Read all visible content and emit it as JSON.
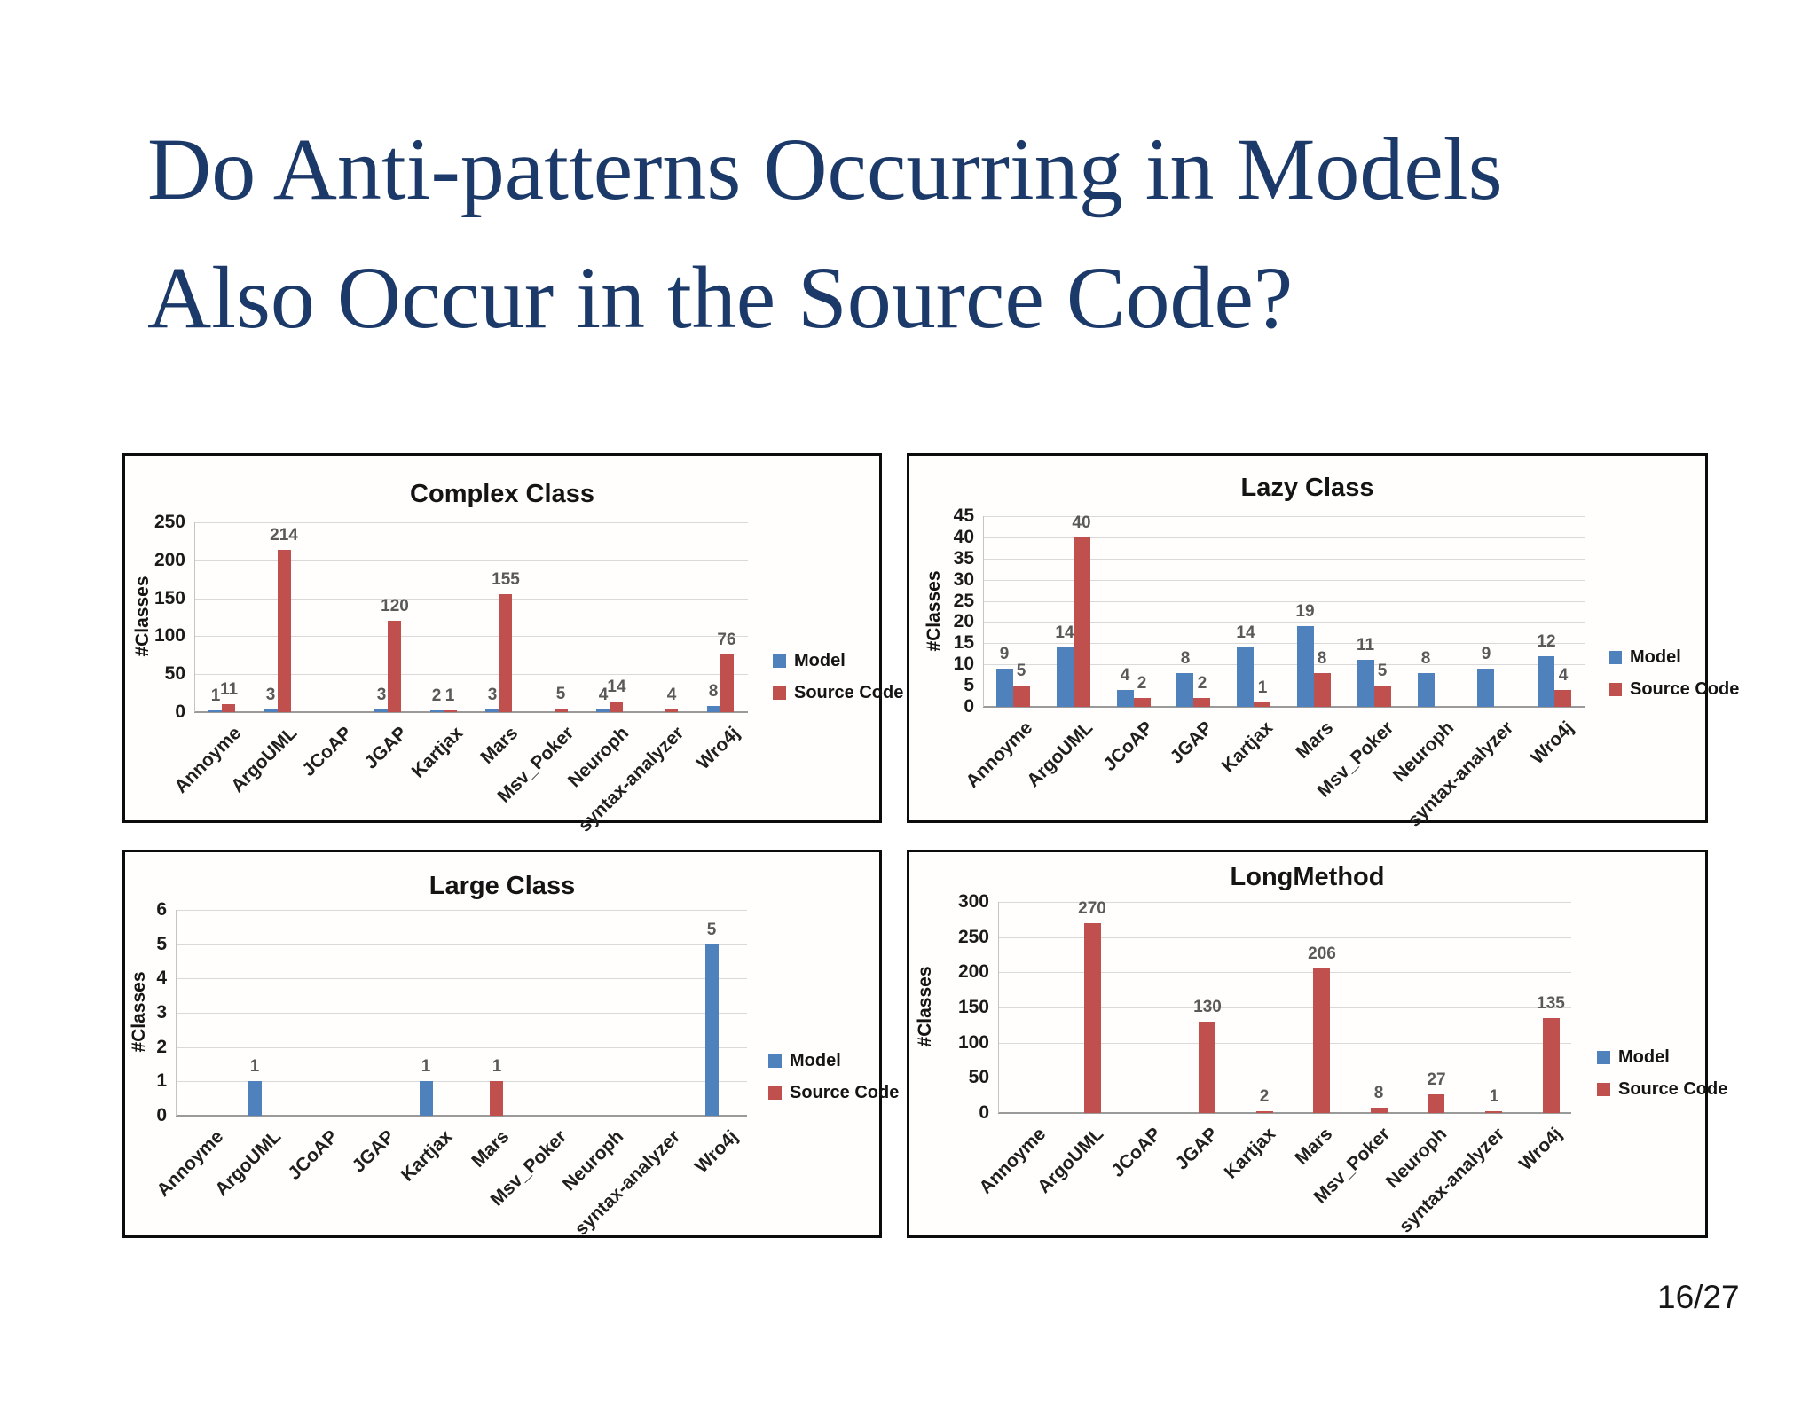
{
  "slide": {
    "title_line1": "Do Anti-patterns Occurring in Models",
    "title_line2": "Also Occur in the Source Code?",
    "page_number": "16/27"
  },
  "colors": {
    "slide_title": "#1c3a69",
    "model": "#4f81bd",
    "source_code": "#c0504d",
    "value_label": "#595959",
    "gridline": "#d9d9d9",
    "axis_line": "#9a9a9a",
    "axis_side": "#c4c4c4",
    "chart_text": "#1a1a1a"
  },
  "categories": [
    "Annoyme",
    "ArgoUML",
    "JCoAP",
    "JGAP",
    "Kartjax",
    "Mars",
    "Msv_Poker",
    "Neuroph",
    "syntax-analyzer",
    "Wro4j"
  ],
  "chart_data": [
    {
      "type": "bar",
      "title": "Complex Class",
      "position": "top-left",
      "xlabel": "",
      "ylabel": "#Classes",
      "ylim": [
        0,
        250
      ],
      "ytick_step": 50,
      "grid": true,
      "legend_position": "right",
      "categories": [
        "Annoyme",
        "ArgoUML",
        "JCoAP",
        "JGAP",
        "Kartjax",
        "Mars",
        "Msv_Poker",
        "Neuroph",
        "syntax-analyzer",
        "Wro4j"
      ],
      "series": [
        {
          "name": "Model",
          "color_key": "model",
          "values": [
            1,
            3,
            null,
            3,
            2,
            3,
            null,
            4,
            null,
            8
          ]
        },
        {
          "name": "Source Code",
          "color_key": "source_code",
          "values": [
            11,
            214,
            null,
            120,
            1,
            155,
            5,
            14,
            4,
            76
          ]
        }
      ]
    },
    {
      "type": "bar",
      "title": "Lazy Class",
      "position": "top-right",
      "xlabel": "",
      "ylabel": "#Classes",
      "ylim": [
        0,
        45
      ],
      "ytick_step": 5,
      "grid": true,
      "legend_position": "right",
      "categories": [
        "Annoyme",
        "ArgoUML",
        "JCoAP",
        "JGAP",
        "Kartjax",
        "Mars",
        "Msv_Poker",
        "Neuroph",
        "syntax-analyzer",
        "Wro4j"
      ],
      "series": [
        {
          "name": "Model",
          "color_key": "model",
          "values": [
            9,
            14,
            4,
            8,
            14,
            19,
            11,
            8,
            9,
            12
          ]
        },
        {
          "name": "Source Code",
          "color_key": "source_code",
          "values": [
            5,
            40,
            2,
            2,
            1,
            8,
            5,
            null,
            null,
            4
          ]
        }
      ]
    },
    {
      "type": "bar",
      "title": "Large Class",
      "position": "bottom-left",
      "xlabel": "",
      "ylabel": "#Classes",
      "ylim": [
        0,
        6
      ],
      "ytick_step": 1,
      "grid": true,
      "legend_position": "right",
      "categories": [
        "Annoyme",
        "ArgoUML",
        "JCoAP",
        "JGAP",
        "Kartjax",
        "Mars",
        "Msv_Poker",
        "Neuroph",
        "syntax-analyzer",
        "Wro4j"
      ],
      "series": [
        {
          "name": "Model",
          "color_key": "model",
          "values": [
            null,
            1,
            null,
            null,
            1,
            null,
            null,
            null,
            null,
            5
          ]
        },
        {
          "name": "Source Code",
          "color_key": "source_code",
          "values": [
            null,
            null,
            null,
            null,
            null,
            1,
            null,
            null,
            null,
            null
          ]
        }
      ]
    },
    {
      "type": "bar",
      "title": "LongMethod",
      "position": "bottom-right",
      "xlabel": "",
      "ylabel": "#Classes",
      "ylim": [
        0,
        300
      ],
      "ytick_step": 50,
      "grid": true,
      "legend_position": "right",
      "categories": [
        "Annoyme",
        "ArgoUML",
        "JCoAP",
        "JGAP",
        "Kartjax",
        "Mars",
        "Msv_Poker",
        "Neuroph",
        "syntax-analyzer",
        "Wro4j"
      ],
      "series": [
        {
          "name": "Model",
          "color_key": "model",
          "values": [
            null,
            null,
            null,
            null,
            null,
            null,
            null,
            null,
            null,
            null
          ]
        },
        {
          "name": "Source Code",
          "color_key": "source_code",
          "values": [
            null,
            270,
            null,
            130,
            2,
            206,
            8,
            27,
            1,
            135
          ]
        }
      ]
    }
  ]
}
